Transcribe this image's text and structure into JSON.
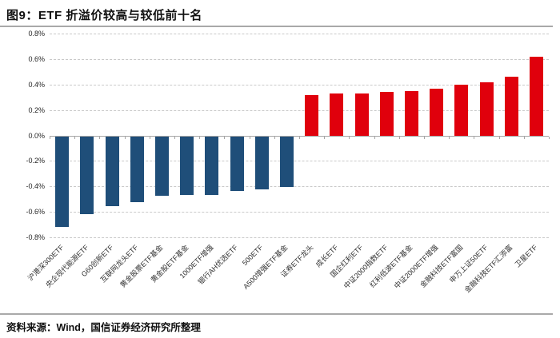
{
  "header": {
    "title": "图9：ETF 折溢价较高与较低前十名"
  },
  "footer": {
    "source": "资料来源：Wind，国信证券经济研究所整理"
  },
  "colors": {
    "negative_bar": "#1f4e79",
    "positive_bar": "#e0000c",
    "gridline": "#c9c9c9",
    "axis_line": "#a6a6a6",
    "divider": "#a9a9a9",
    "text": "#262626"
  },
  "chart_data": {
    "type": "bar",
    "title": "图9：ETF 折溢价较高与较低前十名",
    "xlabel": "",
    "ylabel": "",
    "ylim": [
      -0.8,
      0.8
    ],
    "ytick_step": 0.2,
    "ytick_suffix": "%",
    "grid": "horizontal-dashed",
    "legend": "none",
    "categories": [
      "沪港深300ETF",
      "央企现代能源ETF",
      "G60创新ETF",
      "互联网龙头ETF",
      "黄金股票ETF基金",
      "黄金股ETF基金",
      "1000ETF增强",
      "银行AH优选ETF",
      "500ETF",
      "A500增强ETF基金",
      "证券ETF龙头",
      "成长ETF",
      "国企红利ETF",
      "中证2000指数ETF",
      "红利低波ETF基金",
      "中证2000ETF增强",
      "金融科技ETF富国",
      "申万上证50ETF",
      "金融科技ETF汇添富",
      "卫星ETF"
    ],
    "values": [
      -0.71,
      -0.61,
      -0.55,
      -0.52,
      -0.47,
      -0.46,
      -0.46,
      -0.43,
      -0.42,
      -0.4,
      0.32,
      0.33,
      0.33,
      0.34,
      0.35,
      0.37,
      0.4,
      0.42,
      0.46,
      0.62
    ],
    "value_unit": "percent",
    "color_rule": "negative=blue, positive=red"
  }
}
